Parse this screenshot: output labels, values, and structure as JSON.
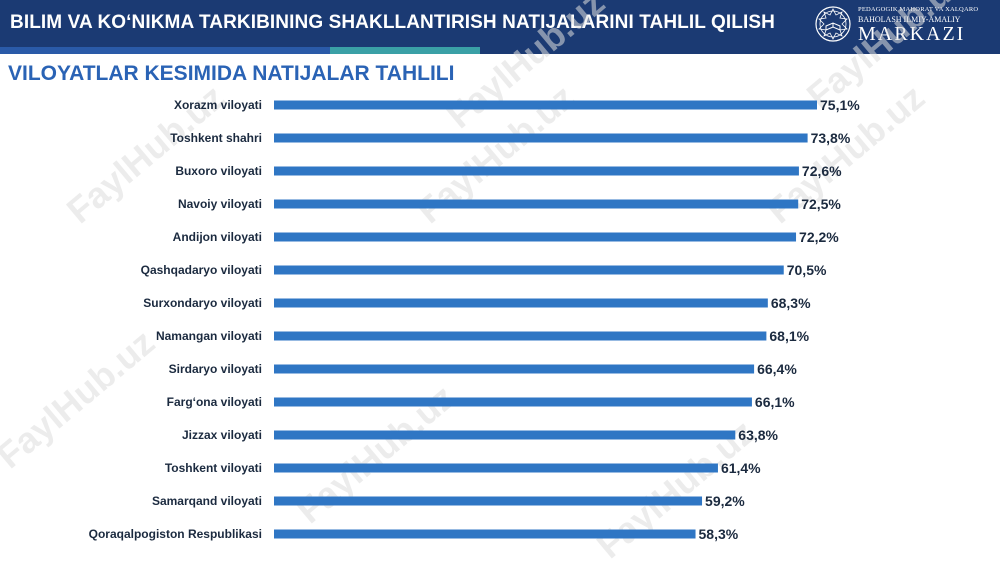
{
  "header": {
    "title": "BILIM VA KO‘NIKMA TARKIBINING SHAKLLANTIRISH NATIJALARINI TAHLIL QILISH",
    "logo_line1": "PEDAGOGIK MAHORAT VA XALQARO",
    "logo_line2": "BAHOLASH ILMIY-AMALIY",
    "logo_line3": "MARKAZI"
  },
  "subtitle": "VILOYATLAR KESIMIDA NATIJALAR TAHLILI",
  "watermark": "FaylHub.uz",
  "colors": {
    "bar": "#2f76c4",
    "header": "#1b3a73",
    "subtitle": "#2a63b5"
  },
  "chart_data": {
    "type": "bar",
    "orientation": "horizontal",
    "categories": [
      "Xorazm viloyati",
      "Toshkent shahri",
      "Buxoro viloyati",
      "Navoiy viloyati",
      "Andijon viloyati",
      "Qashqadaryo viloyati",
      "Surxondaryo viloyati",
      "Namangan viloyati",
      "Sirdaryo viloyati",
      "Farg‘ona viloyati",
      "Jizzax viloyati",
      "Toshkent viloyati",
      "Samarqand viloyati",
      "Qoraqalpogiston Respublikasi"
    ],
    "values": [
      75.1,
      73.8,
      72.6,
      72.5,
      72.2,
      70.5,
      68.3,
      68.1,
      66.4,
      66.1,
      63.8,
      61.4,
      59.2,
      58.3
    ],
    "labels": [
      "75,1%",
      "73,8%",
      "72,6%",
      "72,5%",
      "72,2%",
      "70,5%",
      "68,3%",
      "68,1%",
      "66,4%",
      "66,1%",
      "63,8%",
      "61,4%",
      "59,2%",
      "58,3%"
    ],
    "xlim": [
      0,
      75.1
    ],
    "grid": false,
    "legend": "none"
  }
}
